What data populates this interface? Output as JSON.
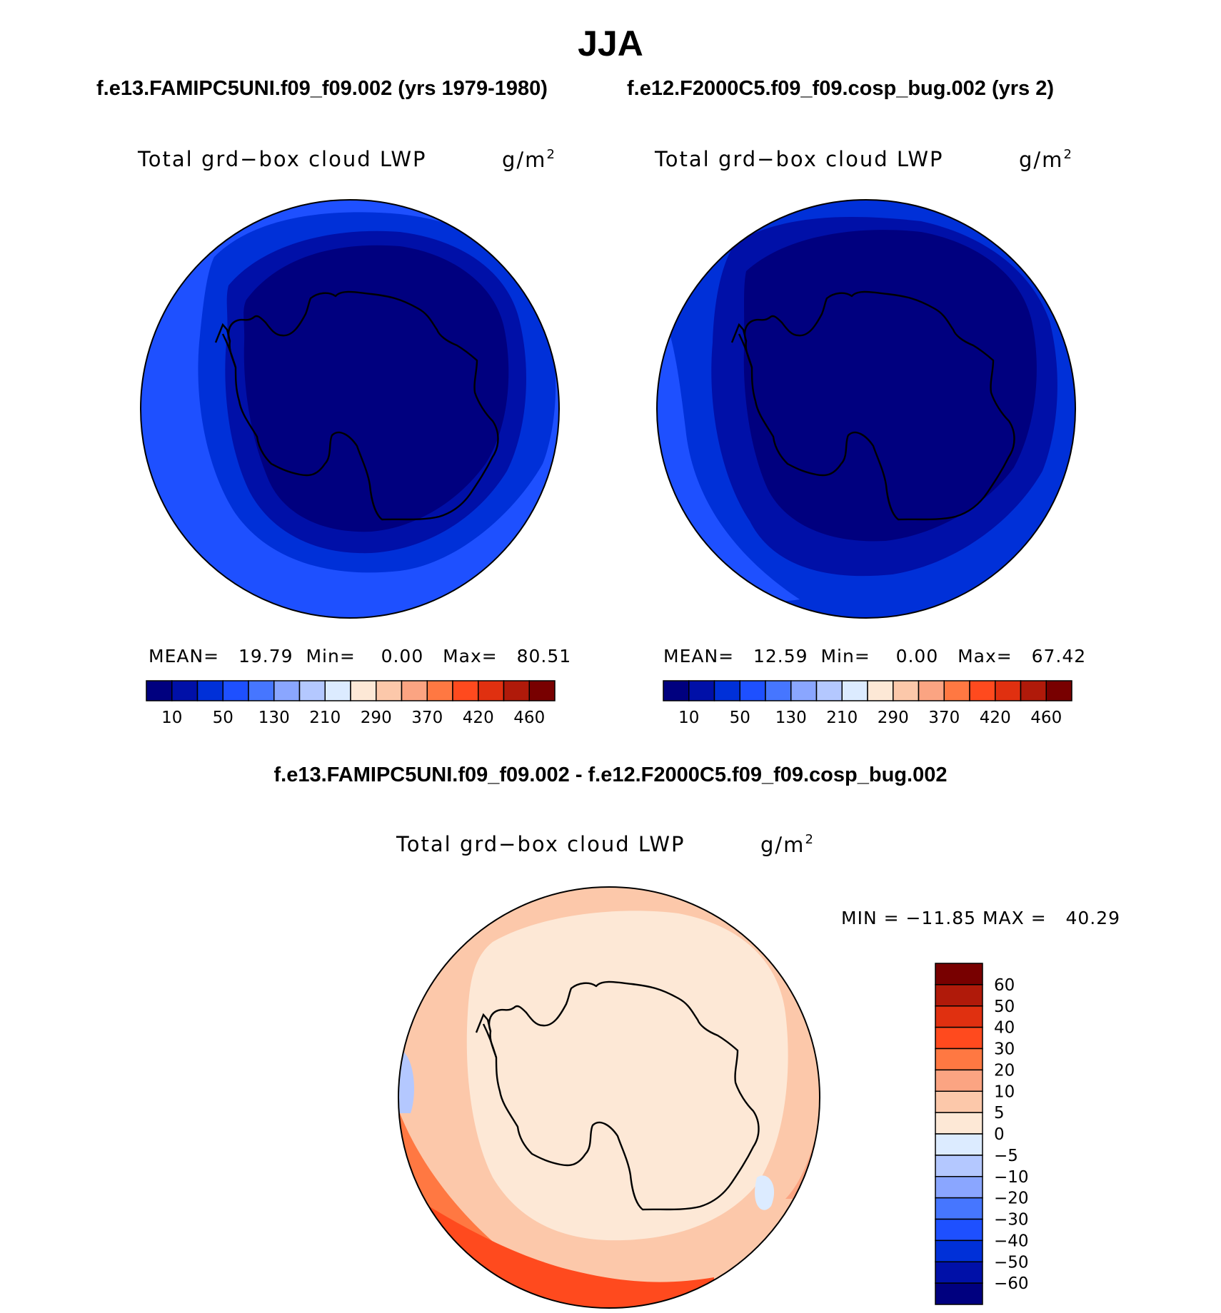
{
  "figure": {
    "season": "JJA",
    "case1_title": "f.e13.FAMIPC5UNI.f09_f09.002 (yrs 1979-1980)",
    "case2_title": "f.e12.F2000C5.f09_f09.cosp_bug.002 (yrs 2)",
    "diff_title": "f.e13.FAMIPC5UNI.f09_f09.002 - f.e12.F2000C5.f09_f09.cosp_bug.002"
  },
  "panels": [
    {
      "variable": "Total grd−box cloud LWP",
      "units_base": "g/m",
      "units_exp": "2",
      "mean_label": "MEAN=",
      "mean_value": "19.79",
      "min_label": "Min=",
      "min_value": "0.00",
      "max_label": "Max=",
      "max_value": "80.51"
    },
    {
      "variable": "Total grd−box cloud LWP",
      "units_base": "g/m",
      "units_exp": "2",
      "mean_label": "MEAN=",
      "mean_value": "12.59",
      "min_label": "Min=",
      "min_value": "0.00",
      "max_label": "Max=",
      "max_value": "67.42"
    },
    {
      "variable": "Total grd−box cloud LWP",
      "units_base": "g/m",
      "units_exp": "2",
      "minmax_text": "MIN = −11.85 MAX =   40.29"
    }
  ],
  "chart_data": [
    {
      "type": "heatmap",
      "title": "f.e13.FAMIPC5UNI.f09_f09.002 (yrs 1979-1980)",
      "projection": "south-polar stereographic",
      "variable": "Total grd-box cloud LWP",
      "units": "g/m2",
      "mean": 19.79,
      "min": 0.0,
      "max": 80.51,
      "colorbar_ticks": [
        "10",
        "50",
        "130",
        "210",
        "290",
        "370",
        "420",
        "460"
      ],
      "colorbar_colors": [
        "#00007f",
        "#0010a8",
        "#0030d8",
        "#1e50ff",
        "#4676ff",
        "#8aa6ff",
        "#b4c8ff",
        "#dcebff",
        "#fde8d6",
        "#fcc8aa",
        "#fba482",
        "#ff7842",
        "#ff4a1e",
        "#e03010",
        "#b01a0a",
        "#780000"
      ],
      "contour_fill_levels": [
        "#00007f",
        "#0010a8",
        "#0030d8",
        "#1e50ff"
      ]
    },
    {
      "type": "heatmap",
      "title": "f.e12.F2000C5.f09_f09.cosp_bug.002 (yrs 2)",
      "projection": "south-polar stereographic",
      "variable": "Total grd-box cloud LWP",
      "units": "g/m2",
      "mean": 12.59,
      "min": 0.0,
      "max": 67.42,
      "colorbar_ticks": [
        "10",
        "50",
        "130",
        "210",
        "290",
        "370",
        "420",
        "460"
      ],
      "colorbar_colors": [
        "#00007f",
        "#0010a8",
        "#0030d8",
        "#1e50ff",
        "#4676ff",
        "#8aa6ff",
        "#b4c8ff",
        "#dcebff",
        "#fde8d6",
        "#fcc8aa",
        "#fba482",
        "#ff7842",
        "#ff4a1e",
        "#e03010",
        "#b01a0a",
        "#780000"
      ],
      "contour_fill_levels": [
        "#00007f",
        "#0010a8",
        "#0030d8",
        "#1e50ff"
      ]
    },
    {
      "type": "heatmap",
      "title": "f.e13.FAMIPC5UNI.f09_f09.002 - f.e12.F2000C5.f09_f09.cosp_bug.002",
      "projection": "south-polar stereographic",
      "variable": "Total grd-box cloud LWP",
      "units": "g/m2",
      "min": -11.85,
      "max": 40.29,
      "colorbar_ticks": [
        "60",
        "50",
        "40",
        "30",
        "20",
        "10",
        "5",
        "0",
        "−5",
        "−10",
        "−20",
        "−30",
        "−40",
        "−50",
        "−60"
      ],
      "colorbar_colors": [
        "#780000",
        "#b01a0a",
        "#e03010",
        "#ff4a1e",
        "#ff7842",
        "#fba482",
        "#fcc8aa",
        "#fde8d6",
        "#dcebff",
        "#b4c8ff",
        "#8aa6ff",
        "#4676ff",
        "#1e50ff",
        "#0030d8",
        "#0010a8",
        "#00007f"
      ],
      "contour_fill_levels": [
        "#fde8d6",
        "#fcc8aa",
        "#fba482",
        "#ff7842",
        "#ff4a1e",
        "#dcebff",
        "#b4c8ff"
      ]
    }
  ]
}
